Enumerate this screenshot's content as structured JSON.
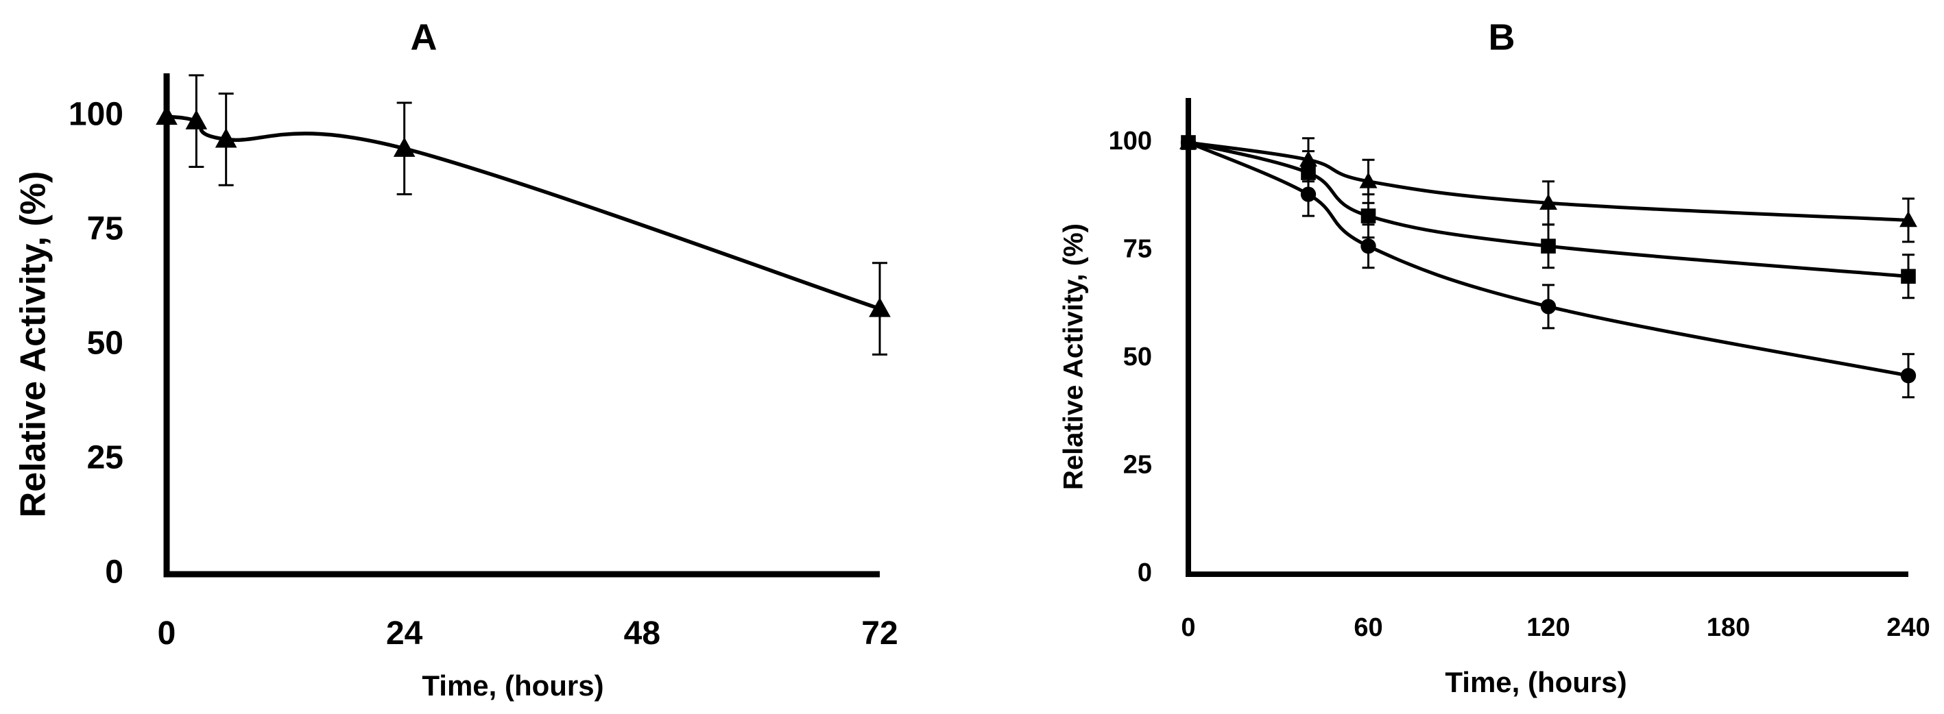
{
  "chart_data": [
    {
      "type": "line",
      "title": "A",
      "xlabel": "Time, (hours)",
      "ylabel": "Relative Activity, (%)",
      "xlim": [
        0,
        72
      ],
      "ylim": [
        0,
        100
      ],
      "xticks": [
        0,
        24,
        48,
        72
      ],
      "yticks": [
        0,
        25,
        50,
        75,
        100
      ],
      "series": [
        {
          "marker": "triangle",
          "x": [
            0,
            3,
            6,
            24,
            72
          ],
          "y": [
            100,
            99,
            95,
            93,
            58
          ],
          "error": [
            0,
            10,
            10,
            10,
            10
          ]
        }
      ]
    },
    {
      "type": "line",
      "title": "B",
      "xlabel": "Time, (hours)",
      "ylabel": "Relative Activity, (%)",
      "xlim": [
        0,
        240
      ],
      "ylim": [
        0,
        100
      ],
      "xticks": [
        0,
        60,
        120,
        180,
        240
      ],
      "yticks": [
        0,
        25,
        50,
        75,
        100
      ],
      "series": [
        {
          "marker": "triangle",
          "x": [
            0,
            40,
            60,
            120,
            240
          ],
          "y": [
            100,
            96,
            91,
            86,
            82
          ],
          "error": [
            0,
            5,
            5,
            5,
            5
          ]
        },
        {
          "marker": "square",
          "x": [
            0,
            40,
            60,
            120,
            240
          ],
          "y": [
            100,
            93,
            83,
            76,
            69
          ],
          "error": [
            0,
            5,
            5,
            5,
            5
          ]
        },
        {
          "marker": "circle",
          "x": [
            0,
            40,
            60,
            120,
            240
          ],
          "y": [
            100,
            88,
            76,
            62,
            46
          ],
          "error": [
            0,
            5,
            5,
            5,
            5
          ]
        }
      ]
    }
  ]
}
